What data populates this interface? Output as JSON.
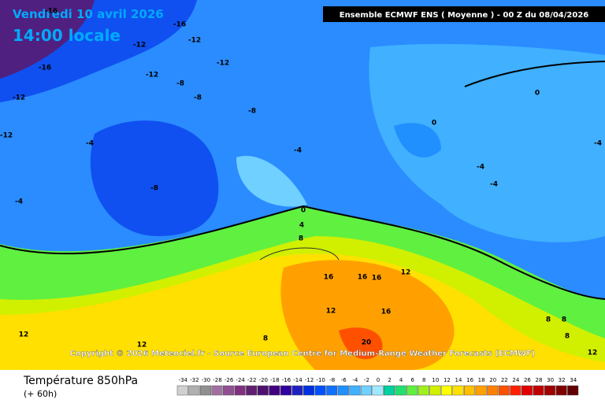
{
  "header": {
    "date": "Vendredi 10 avril 2026",
    "time": "14:00 locale",
    "model": "Ensemble ECMWF ENS  ( Moyenne )  -  00 Z du 08/04/2026"
  },
  "copyright": "Copyright © 2026 Meteociel.fr - Source European Centre for Medium-Range Weather Forecasts (ECMWF)",
  "footer": {
    "title": "Température 850hPa",
    "lead": "(+ 60h)"
  },
  "contour_labels": [
    -16,
    -16,
    -12,
    -12,
    -16,
    -12,
    -12,
    -8,
    -8,
    -12,
    -8,
    -4,
    -4,
    -8,
    -4,
    -12,
    0,
    4,
    8,
    0,
    0,
    -4,
    -4,
    -4,
    16,
    16,
    16,
    12,
    12,
    16,
    12,
    12,
    8,
    20,
    8,
    8,
    8,
    12
  ],
  "scale": {
    "values": [
      -34,
      -32,
      -30,
      -28,
      -26,
      -24,
      -22,
      -20,
      -18,
      -16,
      -14,
      -12,
      -10,
      -8,
      -6,
      -4,
      -2,
      0,
      2,
      4,
      6,
      8,
      10,
      12,
      14,
      16,
      18,
      20,
      22,
      24,
      26,
      28,
      30,
      32,
      34
    ],
    "colors": [
      "#d0d0d0",
      "#b0b0b0",
      "#909090",
      "#a070a0",
      "#905090",
      "#803080",
      "#602070",
      "#501070",
      "#400080",
      "#3000a0",
      "#2020c0",
      "#0030e0",
      "#0050ff",
      "#1070ff",
      "#2090ff",
      "#40b0ff",
      "#70d0ff",
      "#a0e8ff",
      "#00d0a0",
      "#20e070",
      "#60f040",
      "#a0f020",
      "#d0f000",
      "#ffff00",
      "#ffe000",
      "#ffc000",
      "#ffa000",
      "#ff8000",
      "#ff5000",
      "#ff2000",
      "#e00000",
      "#c00000",
      "#a00000",
      "#800000",
      "#600000"
    ]
  }
}
